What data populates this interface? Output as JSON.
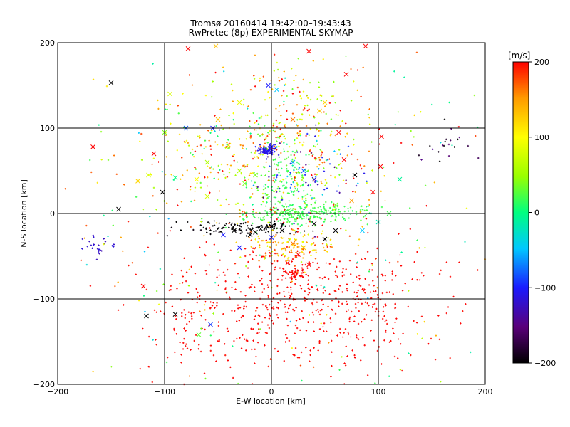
{
  "chart_data": {
    "type": "scatter",
    "title": "Tromsø 20160414 19:42:00–19:43:43",
    "subtitle": "RwPretec (8p) EXPERIMENTAL SKYMAP",
    "xlabel": "E-W location [km]",
    "ylabel": "N-S location [km]",
    "xlim": [
      -200,
      200
    ],
    "ylim": [
      -200,
      200
    ],
    "x_ticks": [
      -200,
      -100,
      0,
      100,
      200
    ],
    "y_ticks": [
      -200,
      -100,
      0,
      100,
      200
    ],
    "x_tick_labels": [
      "−200",
      "−100",
      "0",
      "100",
      "200"
    ],
    "y_tick_labels": [
      "−200",
      "−100",
      "0",
      "100",
      "200"
    ],
    "grid": true,
    "colorbar": {
      "label": "[m/s]",
      "range": [
        -200,
        200
      ],
      "ticks": [
        -200,
        -100,
        0,
        100,
        200
      ],
      "tick_labels": [
        "−200",
        "−100",
        "0",
        "100",
        "200"
      ],
      "colors": [
        "#000000",
        "#5a007a",
        "#1a1aff",
        "#00c8ff",
        "#00ff80",
        "#9aff00",
        "#ffff00",
        "#ff9a00",
        "#ff0000"
      ]
    },
    "clusters": [
      {
        "x": 20,
        "y": -100,
        "sx": 45,
        "sy": 40,
        "n": 340,
        "v": 200,
        "dv": 5
      },
      {
        "x": 85,
        "y": -110,
        "sx": 45,
        "sy": 35,
        "n": 180,
        "v": 200,
        "dv": 5
      },
      {
        "x": -80,
        "y": -120,
        "sx": 30,
        "sy": 40,
        "n": 120,
        "v": 200,
        "dv": 5
      },
      {
        "x": 22,
        "y": -72,
        "sx": 5,
        "sy": 5,
        "n": 45,
        "v": 200,
        "dv": 0
      },
      {
        "x": 20,
        "y": -38,
        "sx": 20,
        "sy": 10,
        "n": 130,
        "v": 130,
        "dv": 50
      },
      {
        "x": 30,
        "y": 0,
        "sx": 30,
        "sy": 6,
        "n": 260,
        "v": 20,
        "dv": 10
      },
      {
        "x": 10,
        "y": 40,
        "sx": 15,
        "sy": 30,
        "n": 160,
        "v": 20,
        "dv": 15
      },
      {
        "x": -5,
        "y": 74,
        "sx": 4,
        "sy": 3,
        "n": 90,
        "v": -110,
        "dv": 10
      },
      {
        "x": -25,
        "y": -17,
        "sx": 25,
        "sy": 4,
        "n": 120,
        "v": -200,
        "dv": 10
      },
      {
        "x": -45,
        "y": 60,
        "sx": 40,
        "sy": 35,
        "n": 200,
        "v": 100,
        "dv": 110
      },
      {
        "x": 30,
        "y": 75,
        "sx": 40,
        "sy": 45,
        "n": 200,
        "v": 130,
        "dv": 100
      },
      {
        "x": 15,
        "y": 130,
        "sx": 25,
        "sy": 25,
        "n": 70,
        "v": 110,
        "dv": 90
      },
      {
        "x": 35,
        "y": 40,
        "sx": 30,
        "sy": 25,
        "n": 70,
        "v": -100,
        "dv": 60
      },
      {
        "x": -160,
        "y": -38,
        "sx": 8,
        "sy": 6,
        "n": 25,
        "v": -120,
        "dv": 10
      },
      {
        "x": -5,
        "y": 0,
        "sx": 110,
        "sy": 110,
        "n": 280,
        "v": 80,
        "dv": 140
      },
      {
        "x": 168,
        "y": 80,
        "sx": 15,
        "sy": 12,
        "n": 20,
        "v": -180,
        "dv": 40
      }
    ],
    "markers": [
      {
        "x": -150,
        "y": 153,
        "v": -200
      },
      {
        "x": -167,
        "y": 78,
        "v": 200
      },
      {
        "x": -143,
        "y": 5,
        "v": -200
      },
      {
        "x": -117,
        "y": -120,
        "v": -200
      },
      {
        "x": -90,
        "y": -118,
        "v": -200
      },
      {
        "x": -120,
        "y": -85,
        "v": 200
      },
      {
        "x": -78,
        "y": 193,
        "v": 200
      },
      {
        "x": -52,
        "y": 196,
        "v": 130
      },
      {
        "x": 35,
        "y": 190,
        "v": 200
      },
      {
        "x": 88,
        "y": 196,
        "v": 200
      },
      {
        "x": 70,
        "y": 163,
        "v": 200
      },
      {
        "x": -3,
        "y": 150,
        "v": -100
      },
      {
        "x": 5,
        "y": 145,
        "v": -50
      },
      {
        "x": 0,
        "y": 78,
        "v": -100
      },
      {
        "x": -60,
        "y": 60,
        "v": 60
      },
      {
        "x": -110,
        "y": 70,
        "v": 200
      },
      {
        "x": -90,
        "y": 42,
        "v": 0
      },
      {
        "x": -115,
        "y": 45,
        "v": 80
      },
      {
        "x": -102,
        "y": 25,
        "v": -200
      },
      {
        "x": 63,
        "y": 95,
        "v": 200
      },
      {
        "x": 68,
        "y": 63,
        "v": 200
      },
      {
        "x": 78,
        "y": 45,
        "v": -200
      },
      {
        "x": 95,
        "y": 25,
        "v": 200
      },
      {
        "x": 103,
        "y": 90,
        "v": 200
      },
      {
        "x": 102,
        "y": 55,
        "v": 200
      },
      {
        "x": 120,
        "y": 40,
        "v": -10
      },
      {
        "x": -57,
        "y": -130,
        "v": -90
      },
      {
        "x": -68,
        "y": -142,
        "v": 30
      },
      {
        "x": -20,
        "y": -25,
        "v": -200
      },
      {
        "x": -15,
        "y": -22,
        "v": -200
      },
      {
        "x": -10,
        "y": -18,
        "v": -200
      },
      {
        "x": 0,
        "y": -15,
        "v": -200
      },
      {
        "x": 10,
        "y": -20,
        "v": -200
      },
      {
        "x": 40,
        "y": -12,
        "v": -200
      },
      {
        "x": 50,
        "y": -30,
        "v": -200
      },
      {
        "x": 60,
        "y": -20,
        "v": -200
      },
      {
        "x": -30,
        "y": -40,
        "v": -100
      },
      {
        "x": -45,
        "y": -25,
        "v": -100
      },
      {
        "x": -35,
        "y": -20,
        "v": -200
      },
      {
        "x": 30,
        "y": -40,
        "v": 130
      },
      {
        "x": 20,
        "y": -35,
        "v": 160
      },
      {
        "x": 25,
        "y": -48,
        "v": 200
      },
      {
        "x": 15,
        "y": -58,
        "v": 200
      },
      {
        "x": 35,
        "y": -60,
        "v": 200
      },
      {
        "x": 0,
        "y": -28,
        "v": -100
      },
      {
        "x": 85,
        "y": -20,
        "v": -50
      },
      {
        "x": 100,
        "y": -10,
        "v": -20
      },
      {
        "x": 60,
        "y": 10,
        "v": 40
      },
      {
        "x": 40,
        "y": 40,
        "v": -120
      },
      {
        "x": 30,
        "y": 50,
        "v": -80
      },
      {
        "x": 20,
        "y": 60,
        "v": -60
      },
      {
        "x": -30,
        "y": 50,
        "v": 60
      },
      {
        "x": -25,
        "y": 35,
        "v": 40
      },
      {
        "x": -15,
        "y": 45,
        "v": 40
      },
      {
        "x": -40,
        "y": 80,
        "v": 120
      },
      {
        "x": -50,
        "y": 110,
        "v": 130
      },
      {
        "x": -30,
        "y": 130,
        "v": 90
      },
      {
        "x": 20,
        "y": 110,
        "v": 160
      },
      {
        "x": 45,
        "y": 120,
        "v": 130
      },
      {
        "x": 50,
        "y": 130,
        "v": 120
      },
      {
        "x": -80,
        "y": 100,
        "v": -80
      },
      {
        "x": -100,
        "y": 95,
        "v": 40
      },
      {
        "x": -125,
        "y": 38,
        "v": 120
      },
      {
        "x": -95,
        "y": 140,
        "v": 80
      },
      {
        "x": -55,
        "y": 100,
        "v": -100
      },
      {
        "x": -70,
        "y": 40,
        "v": 100
      },
      {
        "x": -60,
        "y": 20,
        "v": 80
      },
      {
        "x": 75,
        "y": 15,
        "v": 150
      },
      {
        "x": 110,
        "y": 0,
        "v": 20
      }
    ]
  }
}
